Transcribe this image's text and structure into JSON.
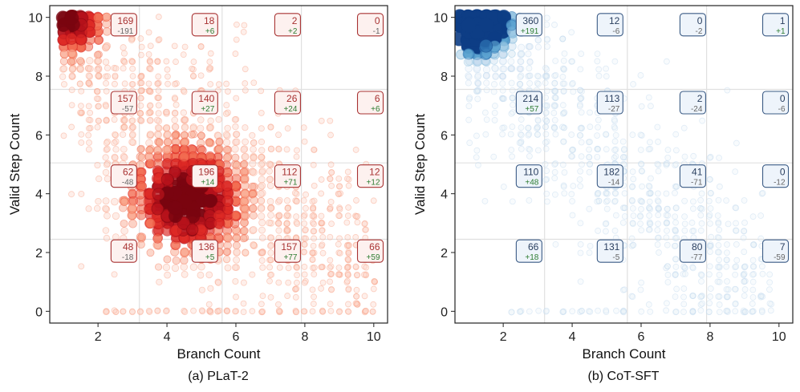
{
  "chart_data": [
    {
      "type": "scatter",
      "caption": "(a) PLaT-2",
      "xlabel": "Branch Count",
      "ylabel": "Valid Step Count",
      "xlim": [
        0.6,
        10.4
      ],
      "ylim": [
        -0.4,
        10.4
      ],
      "xticks": [
        2,
        4,
        6,
        8,
        10
      ],
      "yticks": [
        0,
        2,
        4,
        6,
        8,
        10
      ],
      "grid_x": [
        3.2,
        5.6,
        7.9
      ],
      "grid_y": [
        2.45,
        5.05,
        7.55
      ],
      "colormap": [
        "#fcd2c4",
        "#f9a58b",
        "#f26b50",
        "#dd2a25",
        "#b5121b",
        "#7a0510"
      ],
      "density_center": [
        4.6,
        3.8
      ],
      "top_left_cluster": "dense",
      "annotations": [
        {
          "x": 2.75,
          "y": 9.75,
          "count": "169",
          "delta": "-191",
          "delta_color": "#666666"
        },
        {
          "x": 5.1,
          "y": 9.75,
          "count": "18",
          "delta": "+6",
          "delta_color": "#2e7d32"
        },
        {
          "x": 7.5,
          "y": 9.75,
          "count": "2",
          "delta": "+2",
          "delta_color": "#2e7d32"
        },
        {
          "x": 9.9,
          "y": 9.75,
          "count": "0",
          "delta": "-1",
          "delta_color": "#666666"
        },
        {
          "x": 2.75,
          "y": 7.1,
          "count": "157",
          "delta": "-57",
          "delta_color": "#666666"
        },
        {
          "x": 5.1,
          "y": 7.1,
          "count": "140",
          "delta": "+27",
          "delta_color": "#2e7d32"
        },
        {
          "x": 7.5,
          "y": 7.1,
          "count": "26",
          "delta": "+24",
          "delta_color": "#2e7d32"
        },
        {
          "x": 9.9,
          "y": 7.1,
          "count": "6",
          "delta": "+6",
          "delta_color": "#2e7d32"
        },
        {
          "x": 2.75,
          "y": 4.6,
          "count": "62",
          "delta": "-48",
          "delta_color": "#666666"
        },
        {
          "x": 5.1,
          "y": 4.6,
          "count": "196",
          "delta": "+14",
          "delta_color": "#2e7d32"
        },
        {
          "x": 7.5,
          "y": 4.6,
          "count": "112",
          "delta": "+71",
          "delta_color": "#2e7d32"
        },
        {
          "x": 9.9,
          "y": 4.6,
          "count": "12",
          "delta": "+12",
          "delta_color": "#2e7d32"
        },
        {
          "x": 2.75,
          "y": 2.05,
          "count": "48",
          "delta": "-18",
          "delta_color": "#666666"
        },
        {
          "x": 5.1,
          "y": 2.05,
          "count": "136",
          "delta": "+5",
          "delta_color": "#2e7d32"
        },
        {
          "x": 7.5,
          "y": 2.05,
          "count": "157",
          "delta": "+77",
          "delta_color": "#2e7d32"
        },
        {
          "x": 9.9,
          "y": 2.05,
          "count": "66",
          "delta": "+59",
          "delta_color": "#2e7d32"
        }
      ],
      "annotation_border": "#a83232",
      "annotation_count_color": "#a83232",
      "annotation_fill": "#fdf1ef"
    },
    {
      "type": "scatter",
      "caption": "(b) CoT-SFT",
      "xlabel": "Branch Count",
      "ylabel": "Valid Step Count",
      "xlim": [
        0.6,
        10.4
      ],
      "ylim": [
        -0.4,
        10.4
      ],
      "xticks": [
        2,
        4,
        6,
        8,
        10
      ],
      "yticks": [
        0,
        2,
        4,
        6,
        8,
        10
      ],
      "grid_x": [
        3.2,
        5.6,
        7.9
      ],
      "grid_y": [
        2.45,
        5.05,
        7.55
      ],
      "colormap": [
        "#e3eef8",
        "#c5dcef",
        "#9ac8e3",
        "#5ba2d0",
        "#2b6fb0",
        "#0d3d85"
      ],
      "density_center": [
        1.2,
        9.9
      ],
      "top_left_cluster": "dense",
      "annotations": [
        {
          "x": 2.75,
          "y": 9.75,
          "count": "360",
          "delta": "+191",
          "delta_color": "#2e7d32"
        },
        {
          "x": 5.1,
          "y": 9.75,
          "count": "12",
          "delta": "-6",
          "delta_color": "#666666"
        },
        {
          "x": 7.5,
          "y": 9.75,
          "count": "0",
          "delta": "-2",
          "delta_color": "#666666"
        },
        {
          "x": 9.9,
          "y": 9.75,
          "count": "1",
          "delta": "+1",
          "delta_color": "#2e7d32"
        },
        {
          "x": 2.75,
          "y": 7.1,
          "count": "214",
          "delta": "+57",
          "delta_color": "#2e7d32"
        },
        {
          "x": 5.1,
          "y": 7.1,
          "count": "113",
          "delta": "-27",
          "delta_color": "#666666"
        },
        {
          "x": 7.5,
          "y": 7.1,
          "count": "2",
          "delta": "-24",
          "delta_color": "#666666"
        },
        {
          "x": 9.9,
          "y": 7.1,
          "count": "0",
          "delta": "-6",
          "delta_color": "#666666"
        },
        {
          "x": 2.75,
          "y": 4.6,
          "count": "110",
          "delta": "+48",
          "delta_color": "#2e7d32"
        },
        {
          "x": 5.1,
          "y": 4.6,
          "count": "182",
          "delta": "-14",
          "delta_color": "#666666"
        },
        {
          "x": 7.5,
          "y": 4.6,
          "count": "41",
          "delta": "-71",
          "delta_color": "#666666"
        },
        {
          "x": 9.9,
          "y": 4.6,
          "count": "0",
          "delta": "-12",
          "delta_color": "#666666"
        },
        {
          "x": 2.75,
          "y": 2.05,
          "count": "66",
          "delta": "+18",
          "delta_color": "#2e7d32"
        },
        {
          "x": 5.1,
          "y": 2.05,
          "count": "131",
          "delta": "-5",
          "delta_color": "#666666"
        },
        {
          "x": 7.5,
          "y": 2.05,
          "count": "80",
          "delta": "-77",
          "delta_color": "#666666"
        },
        {
          "x": 9.9,
          "y": 2.05,
          "count": "7",
          "delta": "-59",
          "delta_color": "#666666"
        }
      ],
      "annotation_border": "#3b5b85",
      "annotation_count_color": "#2a3f5f",
      "annotation_fill": "#eef4fb"
    }
  ]
}
